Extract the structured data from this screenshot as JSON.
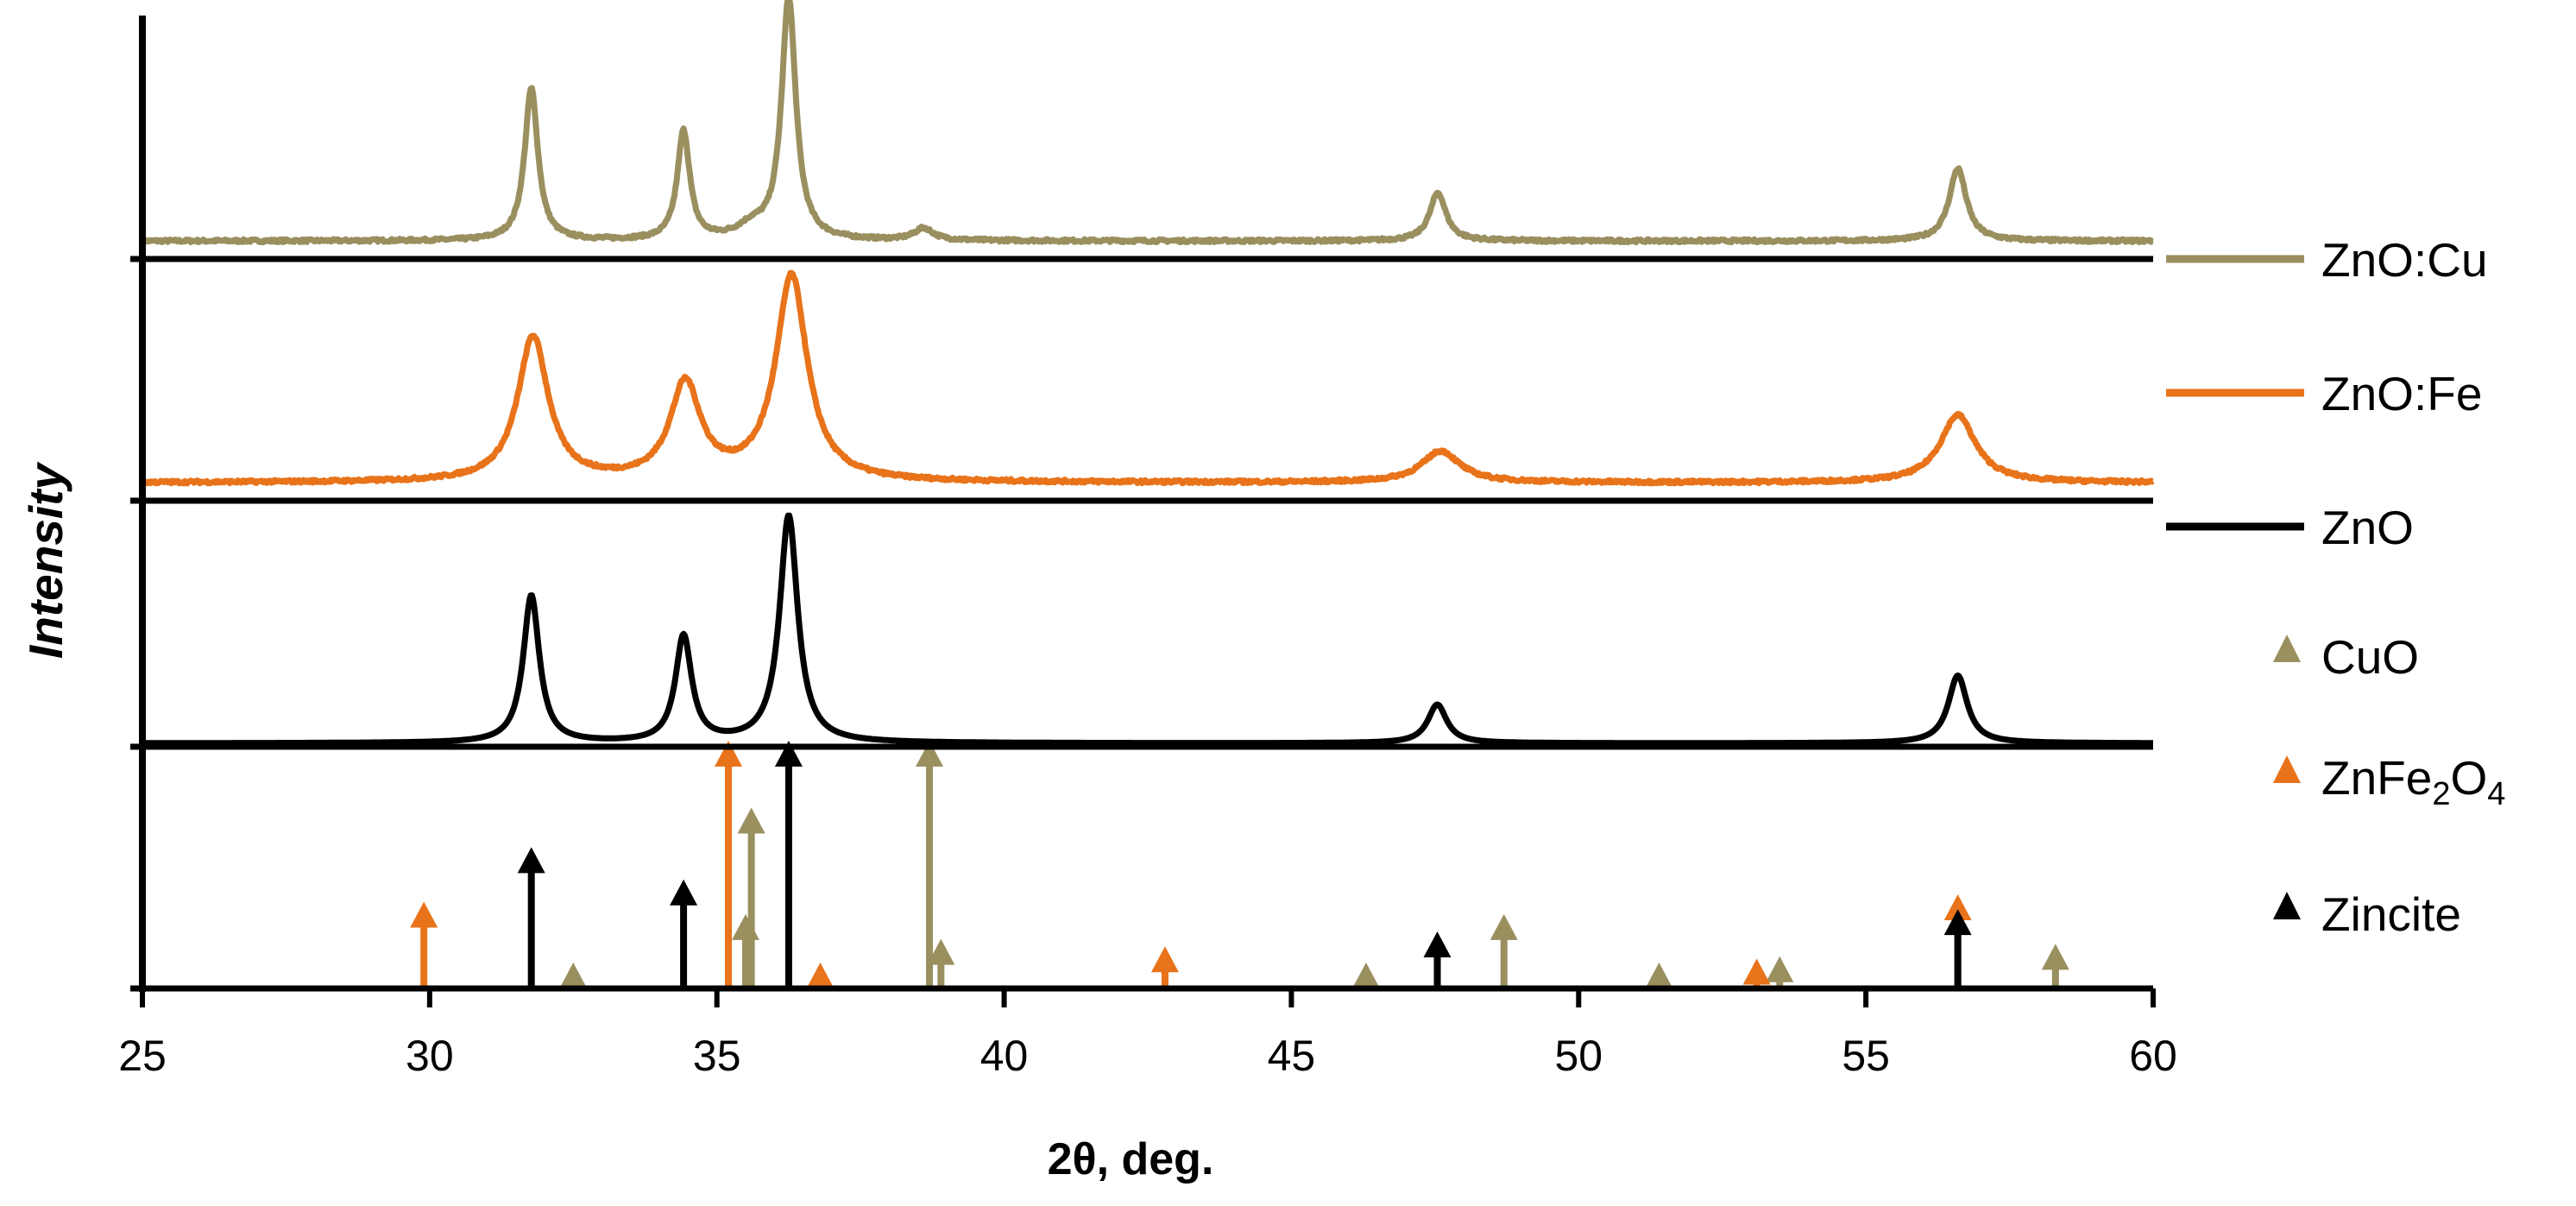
{
  "chart_data": {
    "type": "line",
    "title": "",
    "xlabel": "2θ, deg.",
    "ylabel": "Intensity",
    "xlim": [
      25,
      60
    ],
    "xticks": [
      25,
      30,
      35,
      40,
      45,
      50,
      55,
      60
    ],
    "grid": false,
    "legend_position": "right",
    "series": [
      {
        "name": "ZnO:Cu",
        "color": "#9A8F5F",
        "baseline": 0.06,
        "noise": 0.012,
        "peaks": [
          {
            "x": 31.77,
            "height": 0.63,
            "width": 0.14
          },
          {
            "x": 34.42,
            "height": 0.45,
            "width": 0.13
          },
          {
            "x": 36.25,
            "height": 1.0,
            "width": 0.15
          },
          {
            "x": 35.6,
            "height": 0.05,
            "width": 0.3
          },
          {
            "x": 38.6,
            "height": 0.05,
            "width": 0.2
          },
          {
            "x": 47.55,
            "height": 0.2,
            "width": 0.17
          },
          {
            "x": 56.6,
            "height": 0.3,
            "width": 0.18
          }
        ]
      },
      {
        "name": "ZnO:Fe",
        "color": "#E8731A",
        "baseline": 0.06,
        "noise": 0.012,
        "peaks": [
          {
            "x": 31.8,
            "height": 0.6,
            "width": 0.32
          },
          {
            "x": 34.45,
            "height": 0.4,
            "width": 0.32
          },
          {
            "x": 36.3,
            "height": 0.85,
            "width": 0.33
          },
          {
            "x": 47.6,
            "height": 0.13,
            "width": 0.4
          },
          {
            "x": 56.6,
            "height": 0.28,
            "width": 0.37
          }
        ]
      },
      {
        "name": "ZnO",
        "color": "#000000",
        "baseline": 0.0,
        "noise": 0.0,
        "peaks": [
          {
            "x": 31.77,
            "height": 0.61,
            "width": 0.17
          },
          {
            "x": 34.42,
            "height": 0.44,
            "width": 0.17
          },
          {
            "x": 36.25,
            "height": 0.94,
            "width": 0.19
          },
          {
            "x": 47.54,
            "height": 0.16,
            "width": 0.2
          },
          {
            "x": 56.6,
            "height": 0.28,
            "width": 0.2
          }
        ]
      }
    ],
    "reference_markers": [
      {
        "name": "CuO",
        "color": "#9A8F5F",
        "lines": [
          {
            "x": 32.5,
            "intensity": 0.05
          },
          {
            "x": 35.5,
            "intensity": 0.3
          },
          {
            "x": 35.6,
            "intensity": 0.73
          },
          {
            "x": 38.7,
            "intensity": 1.0
          },
          {
            "x": 38.9,
            "intensity": 0.2
          },
          {
            "x": 46.3,
            "intensity": 0.03
          },
          {
            "x": 48.7,
            "intensity": 0.3
          },
          {
            "x": 51.4,
            "intensity": 0.03
          },
          {
            "x": 53.5,
            "intensity": 0.13
          },
          {
            "x": 58.3,
            "intensity": 0.18
          }
        ]
      },
      {
        "name": "ZnFe2O4",
        "color": "#E8731A",
        "lines": [
          {
            "x": 29.9,
            "intensity": 0.35
          },
          {
            "x": 35.2,
            "intensity": 1.0
          },
          {
            "x": 36.8,
            "intensity": 0.05
          },
          {
            "x": 42.8,
            "intensity": 0.17
          },
          {
            "x": 53.1,
            "intensity": 0.12
          },
          {
            "x": 56.6,
            "intensity": 0.38
          }
        ]
      },
      {
        "name": "Zincite",
        "color": "#000000",
        "lines": [
          {
            "x": 31.77,
            "intensity": 0.57
          },
          {
            "x": 34.42,
            "intensity": 0.44
          },
          {
            "x": 36.25,
            "intensity": 1.0
          },
          {
            "x": 47.54,
            "intensity": 0.23
          },
          {
            "x": 56.6,
            "intensity": 0.32
          }
        ]
      }
    ],
    "legend": [
      {
        "label": "ZnO:Cu",
        "marker": "line",
        "color": "#9A8F5F"
      },
      {
        "label": "ZnO:Fe",
        "marker": "line",
        "color": "#E8731A"
      },
      {
        "label": "ZnO",
        "marker": "line",
        "color": "#000000"
      },
      {
        "label": "CuO",
        "marker": "triangle",
        "color": "#9A8F5F"
      },
      {
        "label": "ZnFe",
        "sub1": "2",
        "mid": "O",
        "sub2": "4",
        "marker": "triangle",
        "color": "#E8731A"
      },
      {
        "label": "Zincite",
        "marker": "triangle",
        "color": "#000000"
      }
    ]
  }
}
